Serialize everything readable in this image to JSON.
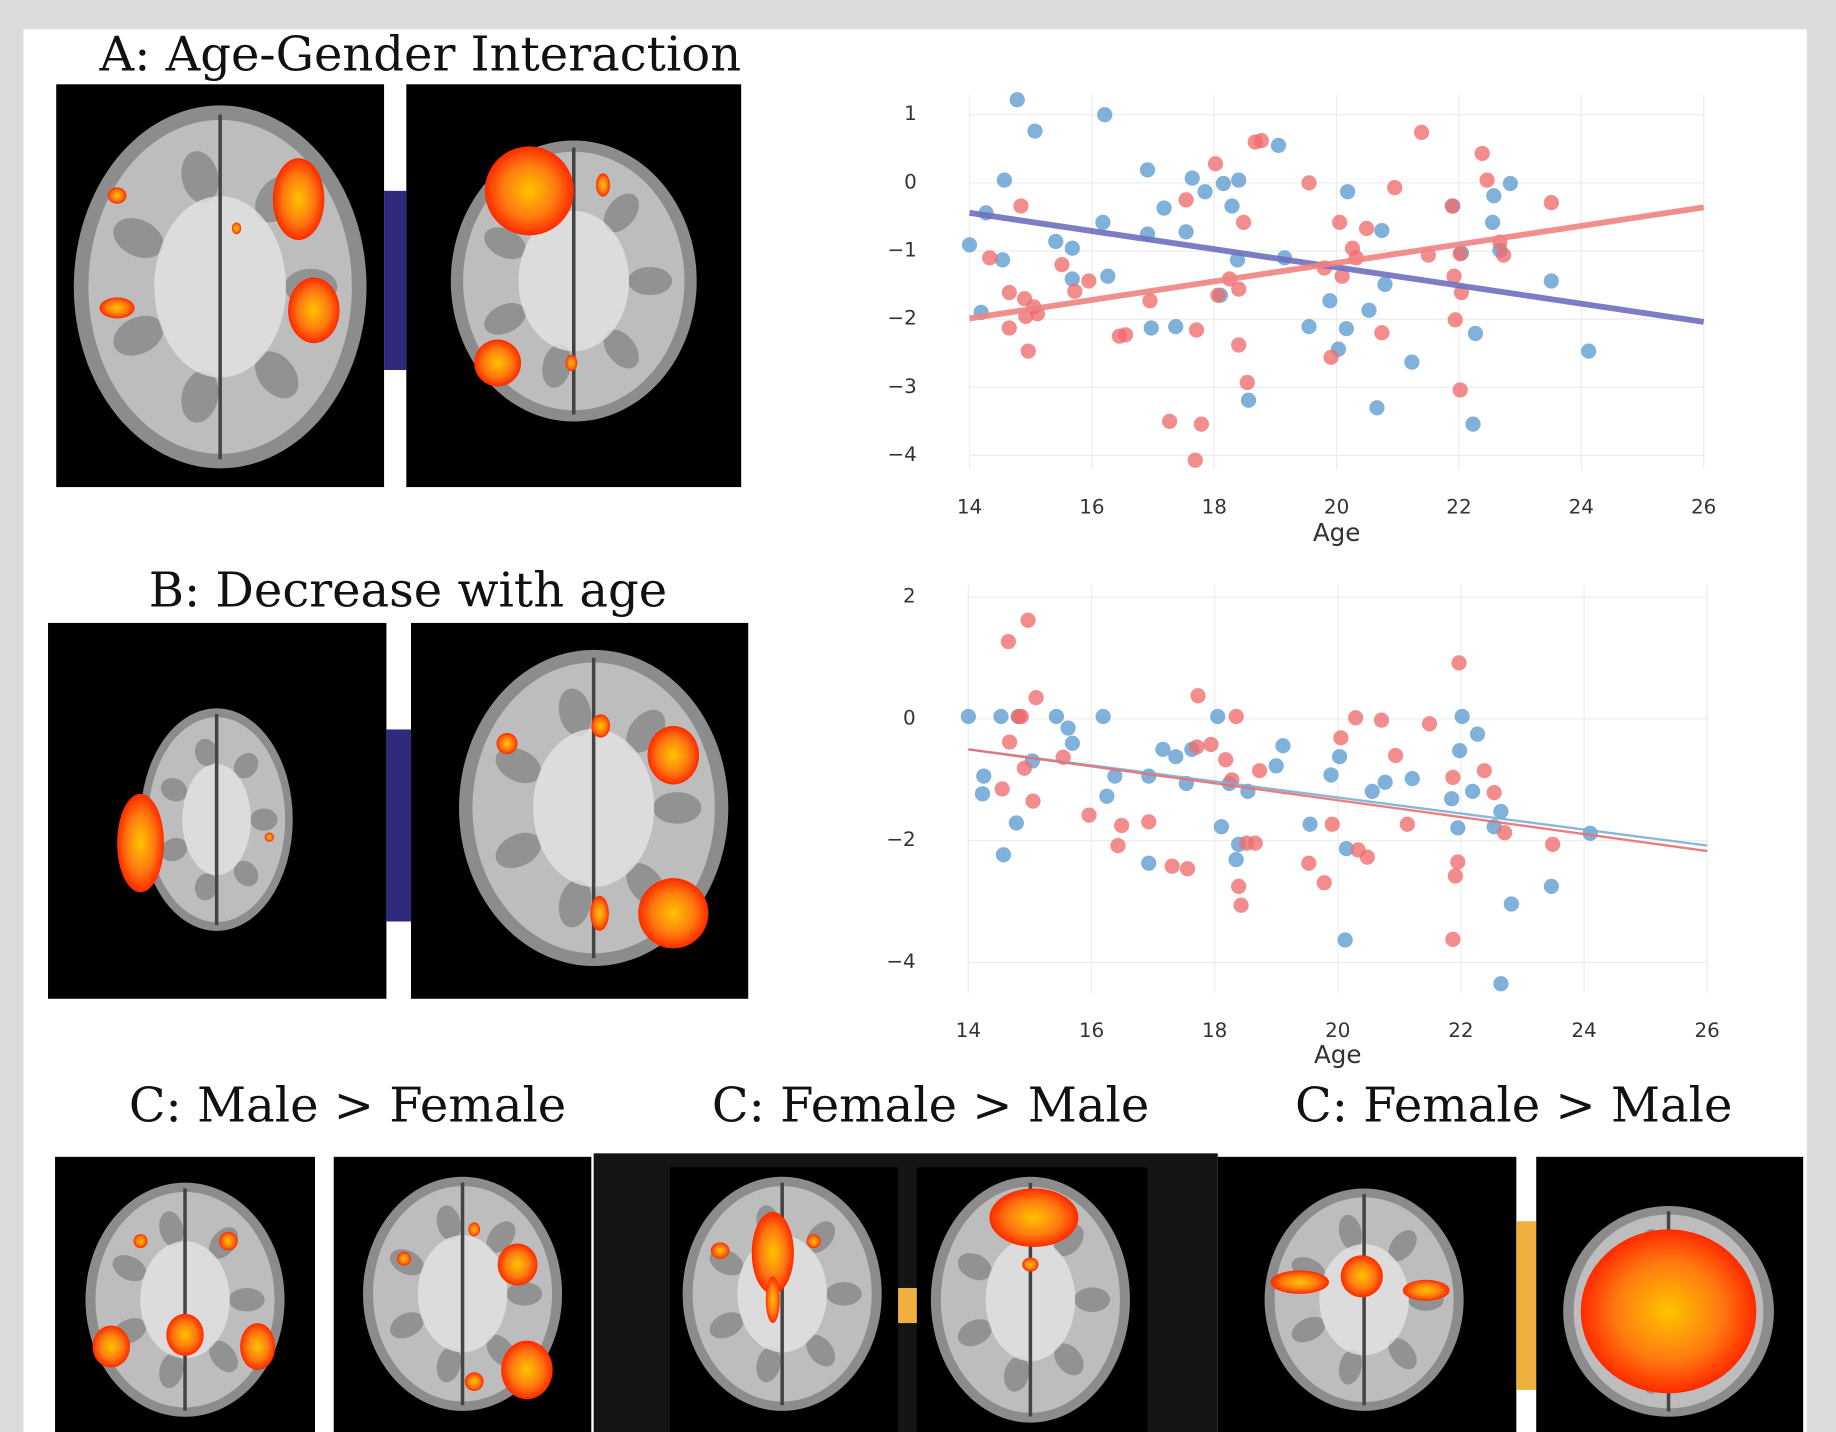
{
  "labels": [
    "A: Age-Gender Interaction",
    "B: Decrease with age",
    "C: Male > Female",
    "C: Female > Male",
    "C: Female > Male"
  ],
  "chart_data": [
    {
      "type": "scatter",
      "xlabel": "Age",
      "xlim": [
        14,
        26
      ],
      "xticks": [
        14,
        16,
        18,
        20,
        22,
        24,
        26
      ],
      "ylim": [
        -4.2,
        1.3
      ],
      "yticks": [
        {
          "value": -4,
          "label": "−4"
        },
        {
          "value": -3,
          "label": "−3"
        },
        {
          "value": -2,
          "label": "−2"
        },
        {
          "value": -1,
          "label": "−1"
        },
        0,
        1
      ],
      "grid": true,
      "series": [
        {
          "mode": "markers",
          "color": "#5b9bcf",
          "x": [
            14.0,
            14.19,
            14.27,
            14.54,
            14.57,
            14.78,
            15.07,
            15.41,
            15.68,
            15.68,
            16.18,
            16.21,
            16.26,
            16.91,
            16.91,
            16.97,
            17.18,
            17.37,
            17.54,
            17.64,
            17.85,
            18.1,
            18.15,
            18.4,
            18.29,
            18.38,
            18.56,
            19.05,
            19.15,
            19.55,
            19.89,
            20.03,
            20.16,
            20.18,
            20.53,
            20.66,
            20.74,
            20.79,
            21.23,
            21.9,
            22.04,
            22.27,
            22.23,
            22.55,
            22.57,
            22.67,
            22.84,
            23.51,
            24.12
          ],
          "values": [
            -0.91,
            -1.9,
            -0.44,
            -1.13,
            0.04,
            1.22,
            0.76,
            -0.86,
            -0.96,
            -1.41,
            -0.58,
            1.0,
            -1.37,
            0.19,
            -0.75,
            -2.13,
            -0.37,
            -2.11,
            -0.72,
            0.07,
            -0.13,
            -1.65,
            -0.01,
            0.04,
            -0.34,
            -1.13,
            -3.19,
            0.55,
            -1.1,
            -2.11,
            -1.73,
            -2.44,
            -2.14,
            -0.13,
            -1.87,
            -3.3,
            -0.7,
            -1.49,
            -2.63,
            -0.34,
            -1.03,
            -2.21,
            -3.54,
            -0.58,
            -0.19,
            -0.99,
            -0.01,
            -1.44,
            -2.47
          ]
        },
        {
          "mode": "markers",
          "color": "#ef6b6b",
          "x": [
            14.33,
            14.65,
            14.65,
            14.84,
            14.9,
            14.92,
            14.96,
            15.05,
            15.11,
            15.51,
            15.72,
            15.95,
            16.45,
            16.55,
            16.95,
            17.27,
            17.54,
            17.71,
            17.79,
            17.69,
            18.02,
            18.06,
            18.25,
            18.4,
            18.4,
            18.48,
            18.54,
            18.67,
            18.77,
            19.55,
            19.8,
            19.91,
            20.05,
            20.09,
            20.26,
            20.32,
            20.49,
            20.74,
            20.95,
            21.39,
            21.5,
            21.89,
            21.92,
            21.94,
            22.02,
            22.04,
            22.02,
            22.38,
            22.46,
            22.67,
            22.73,
            23.51
          ],
          "values": [
            -1.1,
            -1.61,
            -2.13,
            -0.34,
            -1.7,
            -1.96,
            -2.47,
            -1.82,
            -1.92,
            -1.2,
            -1.59,
            -1.44,
            -2.25,
            -2.23,
            -1.73,
            -3.5,
            -0.25,
            -2.16,
            -3.54,
            -4.07,
            0.28,
            -1.65,
            -1.41,
            -1.56,
            -2.38,
            -0.58,
            -2.93,
            0.6,
            0.62,
            0.0,
            -1.25,
            -2.56,
            -0.58,
            -1.37,
            -0.96,
            -1.1,
            -0.67,
            -2.2,
            -0.07,
            0.74,
            -1.06,
            -0.34,
            -1.37,
            -2.01,
            -1.04,
            -1.61,
            -3.04,
            0.43,
            0.04,
            -0.87,
            -1.06,
            -0.29
          ]
        },
        {
          "mode": "line",
          "color": "#6f6fbf",
          "width": 5,
          "x": [
            14,
            26
          ],
          "values": [
            -0.44,
            -2.04
          ]
        },
        {
          "mode": "line",
          "color": "#f08282",
          "width": 5,
          "x": [
            14,
            26
          ],
          "values": [
            -1.99,
            -0.36
          ]
        }
      ]
    },
    {
      "type": "scatter",
      "xlabel": "Age",
      "xlim": [
        14,
        26
      ],
      "xticks": [
        14,
        16,
        18,
        20,
        22,
        24,
        26
      ],
      "ylim": [
        -4.5,
        2.2
      ],
      "yticks": [
        {
          "value": -4,
          "label": "−4"
        },
        {
          "value": -2,
          "label": "−2"
        },
        0,
        2
      ],
      "grid": true,
      "series": [
        {
          "mode": "markers",
          "color": "#5b9bcf",
          "x": [
            14.0,
            14.25,
            14.23,
            14.53,
            14.57,
            14.78,
            14.81,
            15.04,
            15.43,
            15.62,
            15.69,
            16.19,
            16.25,
            16.38,
            16.93,
            16.93,
            17.16,
            17.37,
            17.54,
            17.63,
            18.05,
            18.11,
            18.24,
            18.35,
            18.39,
            18.54,
            19.0,
            19.11,
            19.55,
            19.89,
            20.03,
            20.12,
            20.14,
            20.56,
            20.77,
            21.21,
            21.85,
            21.95,
            21.98,
            22.02,
            22.19,
            22.27,
            22.54,
            22.65,
            22.65,
            22.82,
            23.47,
            24.1
          ],
          "values": [
            0.04,
            -0.94,
            -1.23,
            0.04,
            -2.23,
            -1.71,
            0.04,
            -0.69,
            0.04,
            -0.15,
            -0.4,
            0.04,
            -1.27,
            -0.94,
            -0.94,
            -2.37,
            -0.5,
            -0.62,
            -1.06,
            -0.5,
            0.04,
            -1.77,
            -1.06,
            -2.31,
            -2.06,
            -1.19,
            -0.77,
            -0.44,
            -1.73,
            -0.92,
            -0.62,
            -3.63,
            -2.13,
            -1.19,
            -1.04,
            -0.98,
            -1.31,
            -1.79,
            -0.52,
            0.04,
            -1.19,
            -0.25,
            -1.77,
            -1.52,
            -4.35,
            -3.04,
            -2.75,
            -1.88
          ]
        },
        {
          "mode": "markers",
          "color": "#ef6b6b",
          "x": [
            14.65,
            14.97,
            14.82,
            14.86,
            14.91,
            15.1,
            15.05,
            14.55,
            14.67,
            15.54,
            15.96,
            16.43,
            16.49,
            16.93,
            17.31,
            17.56,
            17.73,
            17.71,
            17.94,
            18.18,
            18.28,
            18.35,
            18.39,
            18.43,
            18.52,
            18.66,
            18.73,
            19.53,
            19.78,
            19.91,
            20.05,
            20.29,
            20.33,
            20.48,
            20.71,
            20.94,
            21.13,
            21.49,
            21.87,
            21.91,
            21.95,
            21.97,
            21.87,
            22.38,
            22.54,
            22.71,
            23.49
          ],
          "values": [
            1.27,
            1.62,
            0.04,
            0.04,
            -0.81,
            0.35,
            -1.35,
            -1.15,
            -0.38,
            -0.63,
            -1.58,
            -2.08,
            -1.75,
            -1.69,
            -2.42,
            -2.46,
            0.38,
            -0.46,
            -0.42,
            -0.67,
            -1.0,
            0.04,
            -2.75,
            -3.06,
            -2.04,
            -2.04,
            -0.85,
            -2.37,
            -2.69,
            -1.73,
            -0.31,
            0.02,
            -2.15,
            -2.27,
            -0.02,
            -0.6,
            -1.73,
            -0.08,
            -0.96,
            -2.58,
            -2.35,
            0.92,
            -3.62,
            -0.85,
            -1.21,
            -1.87,
            -2.06
          ]
        },
        {
          "mode": "line",
          "color": "#7ab0d8",
          "width": 2,
          "x": [
            14,
            26
          ],
          "values": [
            -0.5,
            -2.08
          ]
        },
        {
          "mode": "line",
          "color": "#e87070",
          "width": 2,
          "x": [
            14,
            26
          ],
          "values": [
            -0.5,
            -2.17
          ]
        }
      ]
    }
  ]
}
